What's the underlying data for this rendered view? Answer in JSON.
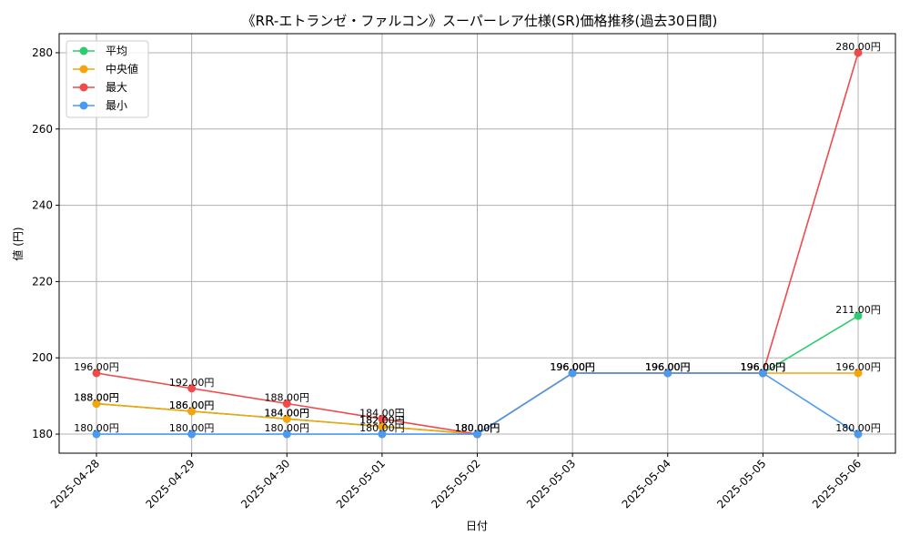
{
  "chart_data": {
    "type": "line",
    "title": "《RR-エトランゼ・ファルコン》スーパーレア仕様(SR)価格推移(過去30日間)",
    "xlabel": "日付",
    "ylabel": "値 (円)",
    "categories": [
      "2025-04-28",
      "2025-04-29",
      "2025-04-30",
      "2025-05-01",
      "2025-05-02",
      "2025-05-03",
      "2025-05-04",
      "2025-05-05",
      "2025-05-06"
    ],
    "ylim": [
      175,
      285
    ],
    "yticks": [
      180,
      200,
      220,
      240,
      260,
      280
    ],
    "grid": true,
    "legend_position": "top-left",
    "series": [
      {
        "name": "平均",
        "color": "#2ecc71",
        "values": [
          188,
          186,
          184,
          182,
          180,
          196,
          196,
          196,
          211
        ],
        "labels": [
          "188.00円",
          "186.00円",
          "184.00円",
          "182.00円",
          "180.00円",
          "196.00円",
          "196.00円",
          "196.00円",
          "211.00円"
        ]
      },
      {
        "name": "中央値",
        "color": "#f5a40c",
        "values": [
          188,
          186,
          184,
          182,
          180,
          196,
          196,
          196,
          196
        ],
        "labels": [
          "188.00円",
          "186.00円",
          "184.00円",
          "182.00円",
          "180.00円",
          "196.00円",
          "196.00円",
          "196.00円",
          "196.00円"
        ]
      },
      {
        "name": "最大",
        "color": "#f04a4a",
        "values": [
          196,
          192,
          188,
          184,
          180,
          196,
          196,
          196,
          280
        ],
        "labels": [
          "196.00円",
          "192.00円",
          "188.00円",
          "184.00円",
          "180.00円",
          "196.00円",
          "196.00円",
          "196.00円",
          "280.00円"
        ]
      },
      {
        "name": "最小",
        "color": "#4a9af0",
        "values": [
          180,
          180,
          180,
          180,
          180,
          196,
          196,
          196,
          180
        ],
        "labels": [
          "180.00円",
          "180.00円",
          "180.00円",
          "180.00円",
          "180.00円",
          "196.00円",
          "196.00円",
          "196.00円",
          "180.00円"
        ]
      }
    ]
  }
}
